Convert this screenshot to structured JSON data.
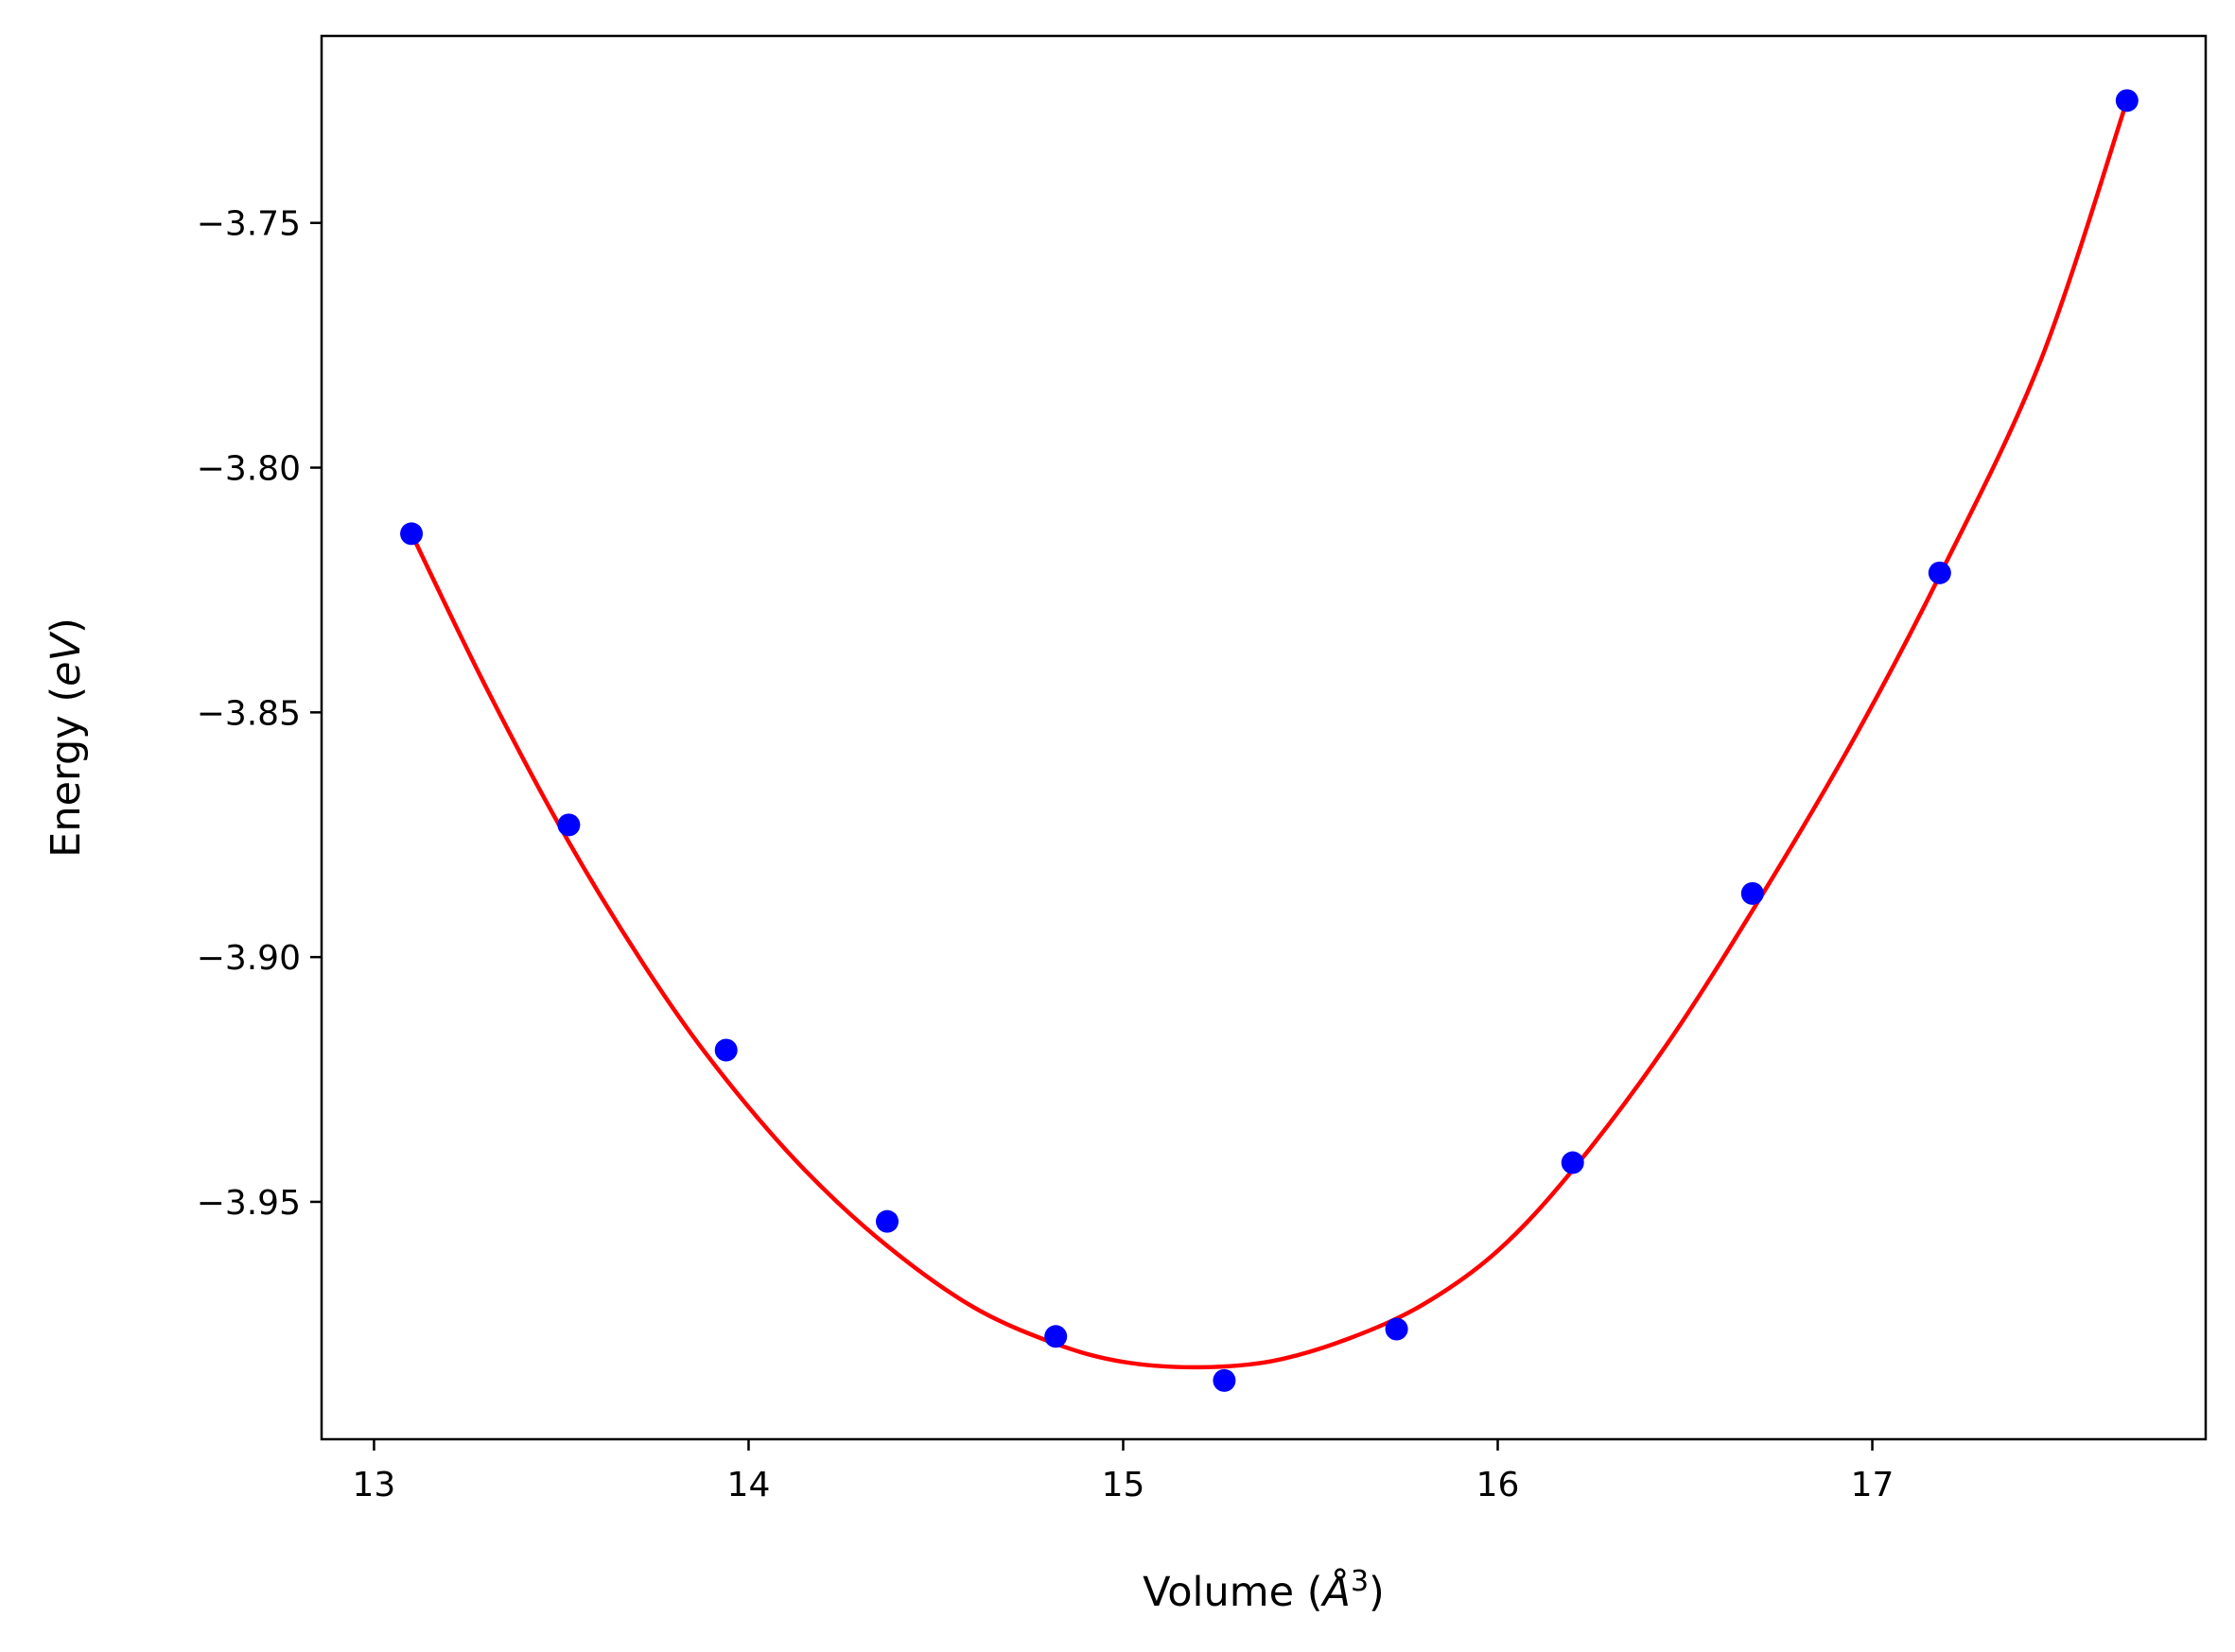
{
  "chart_data": {
    "type": "scatter",
    "title": "",
    "xlabel_parts": {
      "prefix": "Volume (",
      "unit": "Å",
      "power": "3",
      "suffix": ")"
    },
    "ylabel_parts": {
      "prefix": "Energy (",
      "unit": "eV",
      "suffix": ")"
    },
    "xlim": [
      12.86,
      17.89
    ],
    "ylim": [
      -3.9985,
      -3.7118
    ],
    "x_ticks": [
      13,
      14,
      15,
      16,
      17
    ],
    "x_tick_labels": [
      "13",
      "14",
      "15",
      "16",
      "17"
    ],
    "y_ticks": [
      -3.75,
      -3.8,
      -3.85,
      -3.9,
      -3.95
    ],
    "y_tick_labels": [
      "−3.75",
      "−3.80",
      "−3.85",
      "−3.90",
      "−3.95"
    ],
    "grid": false,
    "series": [
      {
        "kind": "points",
        "color": "#0000ff",
        "x": [
          13.1,
          13.52,
          13.94,
          14.37,
          14.82,
          15.27,
          15.73,
          16.2,
          16.68,
          17.18,
          17.68
        ],
        "y": [
          -3.8135,
          -3.873,
          -3.919,
          -3.954,
          -3.9775,
          -3.9865,
          -3.976,
          -3.942,
          -3.887,
          -3.8215,
          -3.725
        ]
      },
      {
        "kind": "fit-curve",
        "color": "#ff0000",
        "x": [
          13.1,
          13.3,
          13.52,
          13.75,
          13.94,
          14.15,
          14.37,
          14.6,
          14.82,
          15.0,
          15.2,
          15.4,
          15.6,
          15.8,
          16.0,
          16.2,
          16.45,
          16.7,
          16.95,
          17.18,
          17.45,
          17.68
        ],
        "y": [
          -3.8135,
          -3.845,
          -3.8765,
          -3.905,
          -3.925,
          -3.9435,
          -3.959,
          -3.9715,
          -3.979,
          -3.9827,
          -3.9838,
          -3.9825,
          -3.978,
          -3.971,
          -3.96,
          -3.9435,
          -3.918,
          -3.888,
          -3.8555,
          -3.822,
          -3.778,
          -3.725
        ]
      }
    ]
  }
}
